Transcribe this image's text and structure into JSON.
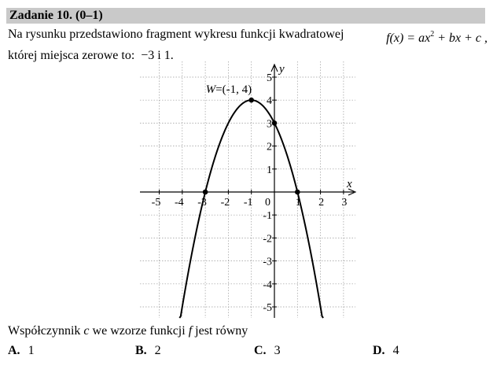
{
  "header": {
    "title": "Zadanie 10. (0–1)"
  },
  "problem": {
    "line1_text": "Na rysunku przedstawiono fragment wykresu funkcji kwadratowej",
    "formula": {
      "lhs": "f(x) = ax",
      "exp": "2",
      "rhs": " + bx + c ,"
    },
    "line2_text": "której miejsca zerowe to:",
    "roots": "−3 i 1."
  },
  "chart_data": {
    "type": "line",
    "xlabel": "x",
    "ylabel": "y",
    "xlim": [
      -5.8,
      3.3
    ],
    "ylim": [
      -5.5,
      5.6
    ],
    "x_ticks": [
      "-5",
      "-4",
      "-3",
      "-2",
      "-1",
      "0",
      "1",
      "2",
      "3"
    ],
    "y_ticks": [
      "5",
      "4",
      "3",
      "2",
      "1",
      "-1",
      "-2",
      "-3",
      "-4",
      "-5"
    ],
    "grid": "dotted",
    "series": [
      {
        "function": "f(x) = -(x+1)^2 + 4",
        "x": [
          -4.12,
          -4,
          -3.5,
          -3,
          -2.5,
          -2,
          -1.5,
          -1,
          -0.5,
          0,
          0.5,
          1,
          1.5,
          2,
          2.12
        ],
        "y": [
          -5.73,
          -5,
          -2.25,
          0,
          1.75,
          3,
          3.75,
          4,
          3.75,
          3,
          1.75,
          0,
          -2.25,
          -5,
          -5.73
        ]
      }
    ],
    "points": [
      {
        "x": -3,
        "y": 0
      },
      {
        "x": 1,
        "y": 0
      },
      {
        "x": 0,
        "y": 3
      },
      {
        "x": -1,
        "y": 4
      }
    ],
    "annotations": [
      {
        "text": "W=(-1, 4)"
      }
    ]
  },
  "question": {
    "text_before": "Współczynnik ",
    "var_c": "c",
    "text_middle": " we wzorze funkcji ",
    "var_f": "f",
    "text_after": " jest równy"
  },
  "answers": [
    {
      "letter": "A.",
      "value": "1"
    },
    {
      "letter": "B.",
      "value": "2"
    },
    {
      "letter": "C.",
      "value": "3"
    },
    {
      "letter": "D.",
      "value": "4"
    }
  ]
}
